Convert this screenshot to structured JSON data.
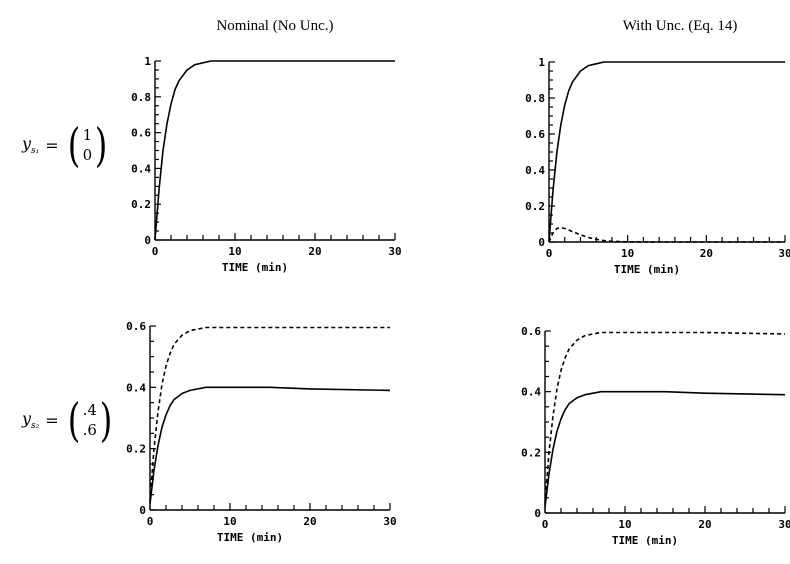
{
  "columns": [
    "Nominal (No Unc.)",
    "With Unc. (Eq. 14)"
  ],
  "rows": [
    {
      "symbol": "y",
      "subscript": "s₁",
      "vector": [
        "1",
        "0"
      ]
    },
    {
      "symbol": "y",
      "subscript": "s₂",
      "vector": [
        ".4",
        ".6"
      ]
    }
  ],
  "chart_data": [
    {
      "type": "line",
      "panel": "top-left",
      "xlabel": "TIME (min)",
      "xlim": [
        0,
        30
      ],
      "ylim": [
        0,
        1
      ],
      "xticks": [
        "0",
        "10",
        "20",
        "30"
      ],
      "yticks": [
        "0",
        "0.2",
        "0.4",
        "0.6",
        "0.8",
        "1"
      ],
      "series": [
        {
          "style": "solid",
          "x": [
            0,
            0.5,
            1,
            1.5,
            2,
            2.5,
            3,
            4,
            5,
            6,
            7,
            8,
            10,
            15,
            20,
            30
          ],
          "y": [
            0,
            0.28,
            0.5,
            0.65,
            0.76,
            0.84,
            0.89,
            0.95,
            0.98,
            0.99,
            1.0,
            1.0,
            1.0,
            1.0,
            1.0,
            1.0
          ]
        }
      ]
    },
    {
      "type": "line",
      "panel": "top-right",
      "xlabel": "TIME (min)",
      "xlim": [
        0,
        30
      ],
      "ylim": [
        0,
        1
      ],
      "xticks": [
        "0",
        "10",
        "20",
        "30"
      ],
      "yticks": [
        "0",
        "0.2",
        "0.4",
        "0.6",
        "0.8",
        "1"
      ],
      "series": [
        {
          "style": "solid",
          "x": [
            0,
            0.5,
            1,
            1.5,
            2,
            2.5,
            3,
            4,
            5,
            6,
            7,
            8,
            10,
            15,
            20,
            30
          ],
          "y": [
            0,
            0.28,
            0.5,
            0.65,
            0.76,
            0.84,
            0.89,
            0.95,
            0.98,
            0.99,
            1.0,
            1.0,
            1.0,
            1.0,
            1.0,
            1.0
          ]
        },
        {
          "style": "dashed",
          "x": [
            0,
            0.5,
            1,
            1.5,
            2,
            3,
            4,
            5,
            6,
            7,
            8,
            10,
            15,
            30
          ],
          "y": [
            0,
            0.05,
            0.075,
            0.08,
            0.075,
            0.058,
            0.04,
            0.025,
            0.015,
            0.008,
            0.004,
            0.001,
            0,
            0
          ]
        }
      ]
    },
    {
      "type": "line",
      "panel": "bottom-left",
      "xlabel": "TIME (min)",
      "xlim": [
        0,
        30
      ],
      "ylim": [
        0,
        0.6
      ],
      "xticks": [
        "0",
        "10",
        "20",
        "30"
      ],
      "yticks": [
        "0",
        "0.2",
        "0.4",
        "0.6"
      ],
      "series": [
        {
          "style": "solid",
          "x": [
            0,
            0.5,
            1,
            1.5,
            2,
            2.5,
            3,
            4,
            5,
            6,
            7,
            8,
            10,
            15,
            20,
            30
          ],
          "y": [
            0.02,
            0.13,
            0.21,
            0.27,
            0.31,
            0.34,
            0.36,
            0.38,
            0.39,
            0.395,
            0.4,
            0.4,
            0.4,
            0.4,
            0.395,
            0.39
          ]
        },
        {
          "style": "dashed",
          "x": [
            0,
            0.5,
            1,
            1.5,
            2,
            2.5,
            3,
            4,
            5,
            6,
            7,
            8,
            10,
            15,
            20,
            30
          ],
          "y": [
            0.03,
            0.2,
            0.32,
            0.41,
            0.47,
            0.51,
            0.54,
            0.57,
            0.585,
            0.59,
            0.595,
            0.595,
            0.595,
            0.595,
            0.595,
            0.595
          ]
        }
      ]
    },
    {
      "type": "line",
      "panel": "bottom-right",
      "xlabel": "TIME (min)",
      "xlim": [
        0,
        30
      ],
      "ylim": [
        0,
        0.6
      ],
      "xticks": [
        "0",
        "10",
        "20",
        "30"
      ],
      "yticks": [
        "0",
        "0.2",
        "0.4",
        "0.6"
      ],
      "series": [
        {
          "style": "solid",
          "x": [
            0,
            0.5,
            1,
            1.5,
            2,
            2.5,
            3,
            4,
            5,
            6,
            7,
            8,
            10,
            15,
            20,
            30
          ],
          "y": [
            0.02,
            0.13,
            0.21,
            0.27,
            0.31,
            0.34,
            0.36,
            0.38,
            0.39,
            0.395,
            0.4,
            0.4,
            0.4,
            0.4,
            0.395,
            0.39
          ]
        },
        {
          "style": "dashed",
          "x": [
            0,
            0.5,
            1,
            1.5,
            2,
            2.5,
            3,
            4,
            5,
            6,
            7,
            8,
            10,
            15,
            20,
            30
          ],
          "y": [
            0.03,
            0.2,
            0.32,
            0.41,
            0.47,
            0.51,
            0.54,
            0.57,
            0.585,
            0.59,
            0.595,
            0.595,
            0.595,
            0.595,
            0.595,
            0.59
          ]
        }
      ]
    }
  ]
}
